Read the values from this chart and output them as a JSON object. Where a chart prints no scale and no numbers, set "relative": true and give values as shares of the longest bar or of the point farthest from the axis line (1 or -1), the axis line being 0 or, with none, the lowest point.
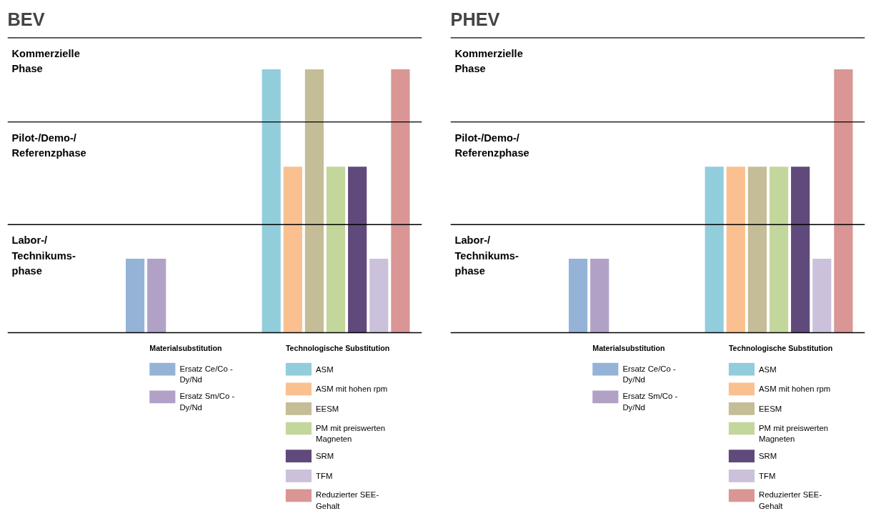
{
  "chart_data": [
    {
      "type": "bar",
      "title": "BEV",
      "relative": true,
      "legend": "bottom",
      "categories": [
        null
      ],
      "series": [
        {
          "name": "Ersatz Ce/Co - Dy/Nd",
          "color": "#95b3d7",
          "values": [
            0.28
          ]
        },
        {
          "name": "Ersatz Sm/Co - Dy/Nd",
          "color": "#b2a1c7",
          "values": [
            0.28
          ]
        },
        {
          "name": "ASM",
          "color": "#92cddc",
          "values": [
            1.0
          ]
        },
        {
          "name": "ASM mit hohen rpm",
          "color": "#fac090",
          "values": [
            0.63
          ]
        },
        {
          "name": "EESM",
          "color": "#c4bd97",
          "values": [
            1.0
          ]
        },
        {
          "name": "PM mit preiswerten Magneten",
          "color": "#c3d69b",
          "values": [
            0.63
          ]
        },
        {
          "name": "SRM",
          "color": "#604a7b",
          "values": [
            0.63
          ]
        },
        {
          "name": "TFM",
          "color": "#ccc1da",
          "values": [
            0.28
          ]
        },
        {
          "name": "Reduzierter SEE-Gehalt",
          "color": "#d99694",
          "values": [
            1.0
          ]
        }
      ],
      "ref_lines": [
        {
          "axis": "y",
          "value": 0.41,
          "label": "Labor-/\nTechnikums-\nphase"
        },
        {
          "axis": "y",
          "value": 0.8,
          "label": "Pilot-/Demo-/\nReferenzphase"
        },
        {
          "axis": "y",
          "value": 1.12,
          "label": "Kommerzielle\nPhase"
        }
      ],
      "annotations": [
        "Materialsubstitution",
        "Technologische  Substitution"
      ]
    },
    {
      "type": "bar",
      "title": "PHEV",
      "relative": true,
      "legend": "bottom",
      "categories": [
        null
      ],
      "series": [
        {
          "name": "Ersatz Ce/Co - Dy/Nd",
          "color": "#95b3d7",
          "values": [
            0.28
          ]
        },
        {
          "name": "Ersatz Sm/Co - Dy/Nd",
          "color": "#b2a1c7",
          "values": [
            0.28
          ]
        },
        {
          "name": "ASM",
          "color": "#92cddc",
          "values": [
            0.63
          ]
        },
        {
          "name": "ASM mit hohen rpm",
          "color": "#fac090",
          "values": [
            0.63
          ]
        },
        {
          "name": "EESM",
          "color": "#c4bd97",
          "values": [
            0.63
          ]
        },
        {
          "name": "PM mit preiswerten Magneten",
          "color": "#c3d69b",
          "values": [
            0.63
          ]
        },
        {
          "name": "SRM",
          "color": "#604a7b",
          "values": [
            0.63
          ]
        },
        {
          "name": "TFM",
          "color": "#ccc1da",
          "values": [
            0.28
          ]
        },
        {
          "name": "Reduzierter SEE-Gehalt",
          "color": "#d99694",
          "values": [
            1.0
          ]
        }
      ],
      "ref_lines": [
        {
          "axis": "y",
          "value": 0.41,
          "label": "Labor-/\nTechnikums-\nphase"
        },
        {
          "axis": "y",
          "value": 0.8,
          "label": "Pilot-/Demo-/\nReferenzphase"
        },
        {
          "axis": "y",
          "value": 1.12,
          "label": "Kommerzielle\nPhase"
        }
      ],
      "annotations": [
        "Materialsubstitution",
        "Technologische  Substitution"
      ]
    }
  ]
}
